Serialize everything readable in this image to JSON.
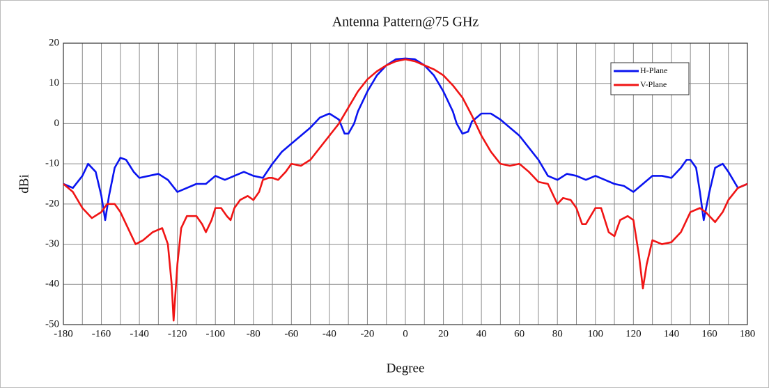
{
  "chart_data": {
    "type": "line",
    "title": "Antenna Pattern@75 GHz",
    "x_label": "Degree",
    "y_label": "dBi",
    "xlim": [
      -180,
      180
    ],
    "ylim": [
      -50,
      20
    ],
    "xticks": [
      -180,
      -160,
      -140,
      -120,
      -100,
      -80,
      -60,
      -40,
      -20,
      0,
      20,
      40,
      60,
      80,
      100,
      120,
      140,
      160,
      180
    ],
    "yticks": [
      -50,
      -40,
      -30,
      -20,
      -10,
      0,
      10,
      20
    ],
    "grid": true,
    "legend": "upper-right",
    "series": [
      {
        "name": "H-Plane",
        "color": "#0a14f0",
        "x": [
          -180,
          -175,
          -170,
          -167,
          -163,
          -160,
          -158,
          -156,
          -153,
          -150,
          -147,
          -143,
          -140,
          -135,
          -130,
          -125,
          -120,
          -115,
          -110,
          -105,
          -100,
          -95,
          -90,
          -85,
          -80,
          -75,
          -70,
          -65,
          -60,
          -55,
          -50,
          -45,
          -40,
          -35,
          -32,
          -30,
          -27,
          -25,
          -20,
          -15,
          -10,
          -5,
          0,
          5,
          10,
          15,
          20,
          25,
          27,
          30,
          33,
          35,
          40,
          45,
          50,
          55,
          60,
          65,
          70,
          75,
          80,
          85,
          90,
          95,
          100,
          105,
          110,
          115,
          120,
          125,
          130,
          135,
          140,
          145,
          148,
          150,
          153,
          155,
          157,
          160,
          163,
          167,
          170,
          175,
          180
        ],
        "values": [
          -15,
          -16,
          -13,
          -10,
          -12,
          -18,
          -24,
          -18,
          -11,
          -8.5,
          -9,
          -12,
          -13.5,
          -13,
          -12.5,
          -14,
          -17,
          -16,
          -15,
          -15,
          -13,
          -14,
          -13,
          -12,
          -13,
          -13.5,
          -10,
          -7,
          -5,
          -3,
          -1,
          1.5,
          2.5,
          1,
          -2.5,
          -2.5,
          0,
          3,
          8,
          12,
          14.5,
          16,
          16.2,
          16,
          14.5,
          12,
          8,
          3,
          0,
          -2.5,
          -2,
          0.5,
          2.5,
          2.5,
          1,
          -1,
          -3,
          -6,
          -9,
          -13,
          -14,
          -12.5,
          -13,
          -14,
          -13,
          -14,
          -15,
          -15.5,
          -17,
          -15,
          -13,
          -13,
          -13.5,
          -11,
          -9,
          -9,
          -11,
          -17,
          -24,
          -17,
          -11,
          -10,
          -12,
          -16,
          -15
        ]
      },
      {
        "name": "V-Plane",
        "color": "#f01414",
        "x": [
          -180,
          -175,
          -170,
          -165,
          -160,
          -157,
          -153,
          -150,
          -145,
          -142,
          -138,
          -133,
          -128,
          -125,
          -123,
          -122,
          -120,
          -118,
          -115,
          -110,
          -107,
          -105,
          -102,
          -100,
          -97,
          -94,
          -92,
          -90,
          -87,
          -83,
          -80,
          -77,
          -75,
          -72,
          -70,
          -67,
          -63,
          -60,
          -55,
          -50,
          -45,
          -40,
          -35,
          -30,
          -25,
          -20,
          -15,
          -10,
          -5,
          0,
          5,
          10,
          15,
          20,
          25,
          30,
          35,
          40,
          45,
          50,
          55,
          60,
          65,
          70,
          75,
          78,
          80,
          83,
          87,
          90,
          93,
          95,
          100,
          103,
          107,
          110,
          113,
          117,
          120,
          123,
          125,
          127,
          130,
          135,
          140,
          145,
          150,
          155,
          158,
          160,
          163,
          167,
          170,
          175,
          180
        ],
        "values": [
          -15,
          -17,
          -21,
          -23.5,
          -22,
          -20,
          -20,
          -22,
          -27,
          -30,
          -29,
          -27,
          -26,
          -30,
          -40,
          -49,
          -35,
          -26,
          -23,
          -23,
          -25,
          -27,
          -24,
          -21,
          -21,
          -23,
          -24,
          -21,
          -19,
          -18,
          -19,
          -17,
          -14,
          -13.5,
          -13.5,
          -14,
          -12,
          -10,
          -10.5,
          -9,
          -6,
          -3,
          0,
          4,
          8,
          11,
          13,
          14.5,
          15.5,
          16,
          15.5,
          14.5,
          13.5,
          12,
          9.5,
          6.5,
          2,
          -3,
          -7,
          -10,
          -10.5,
          -10,
          -12,
          -14.5,
          -15,
          -18,
          -20,
          -18.5,
          -19,
          -21,
          -25,
          -25,
          -21,
          -21,
          -27,
          -28,
          -24,
          -23,
          -24,
          -33,
          -41,
          -35,
          -29,
          -30,
          -29.5,
          -27,
          -22,
          -21,
          -22,
          -23,
          -24.5,
          -22,
          -19,
          -16,
          -15
        ]
      }
    ]
  }
}
